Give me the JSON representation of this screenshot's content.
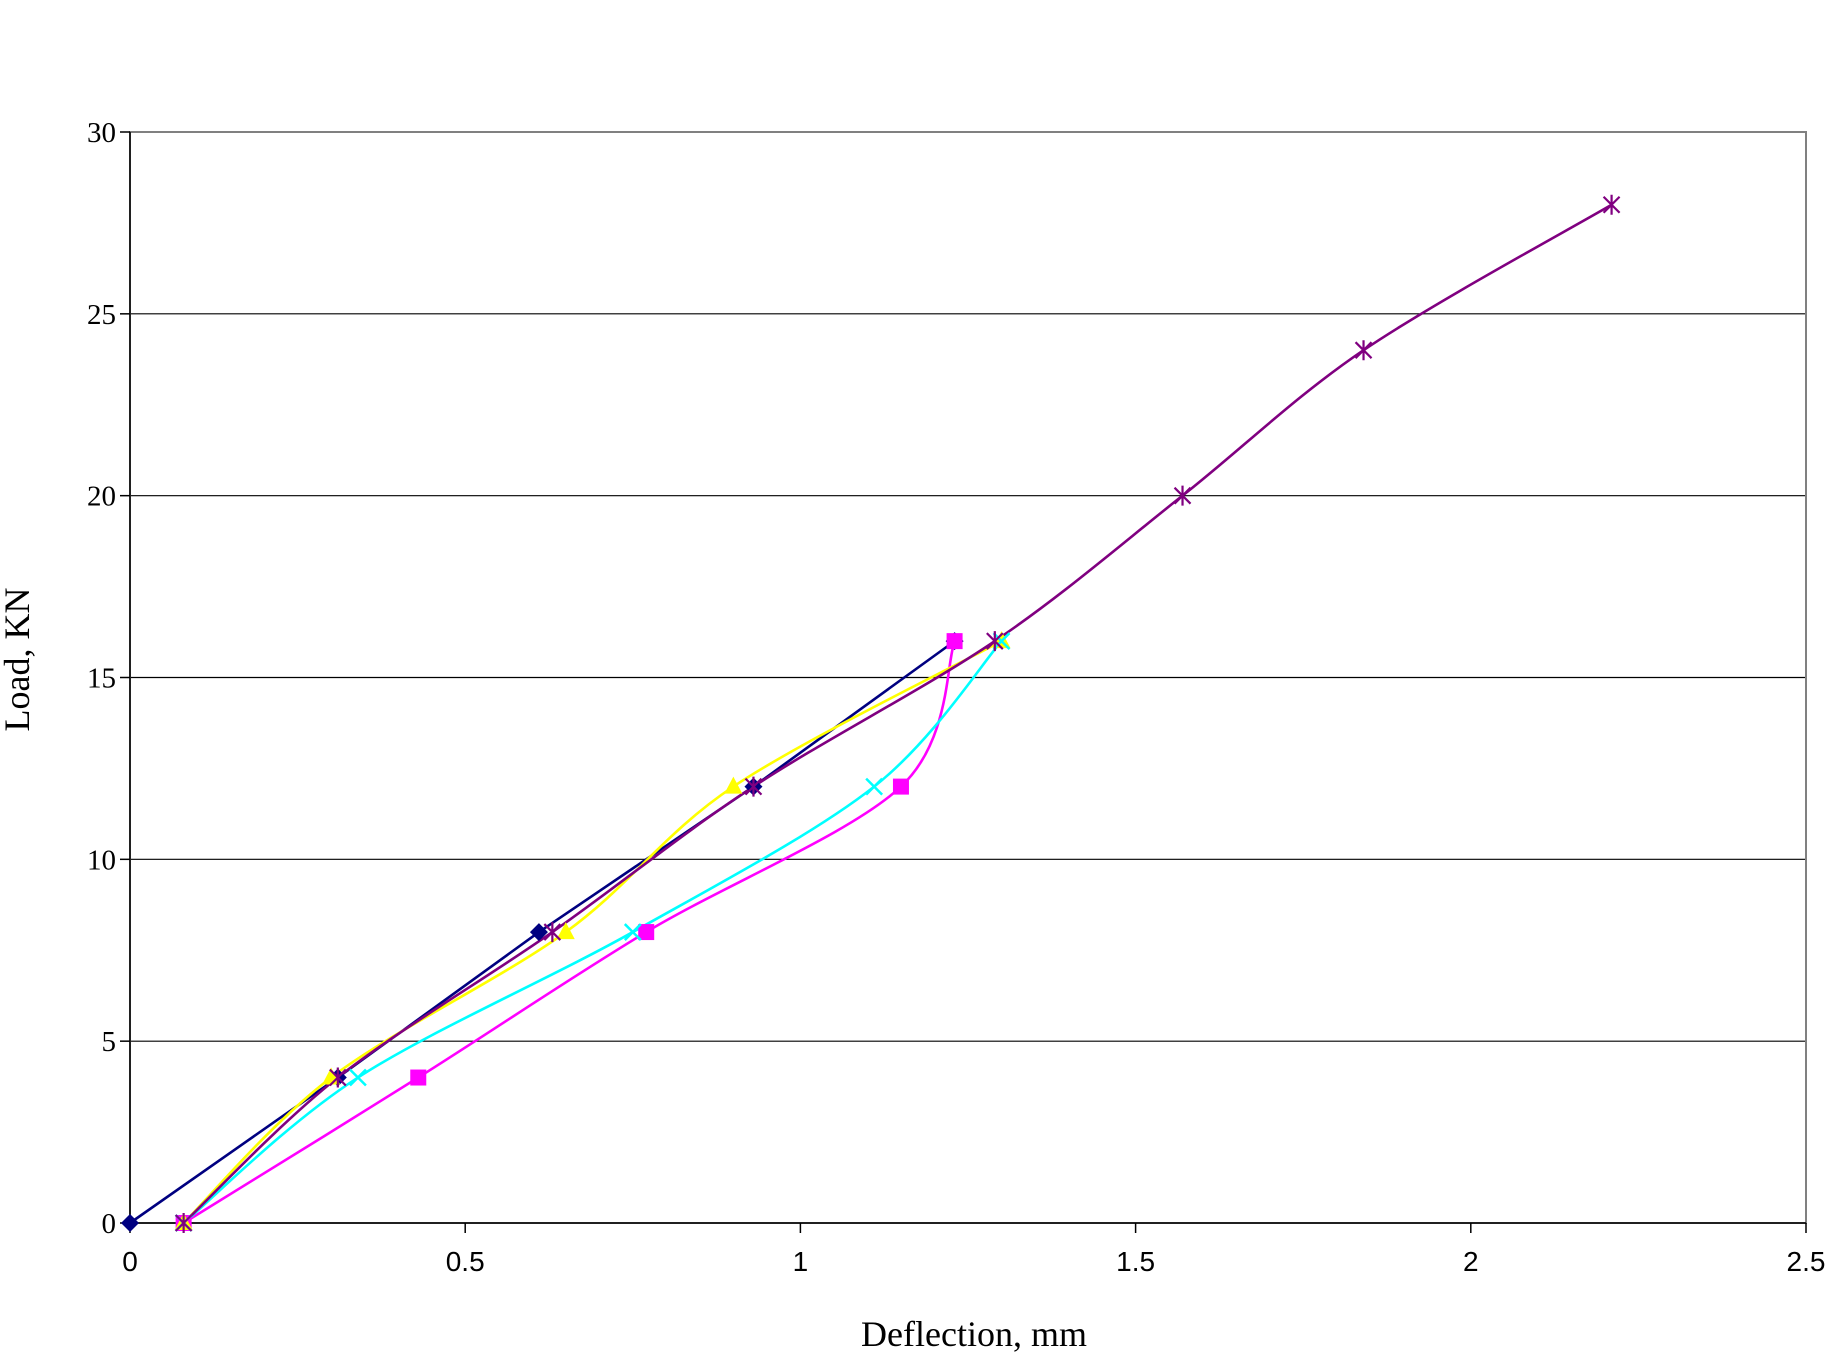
{
  "chart_data": {
    "type": "line",
    "title": "",
    "xlabel": "Deflection, mm",
    "ylabel": "Load, KN",
    "xlim": [
      0,
      2.5
    ],
    "ylim": [
      0,
      30
    ],
    "xticks": [
      0,
      0.5,
      1,
      1.5,
      2,
      2.5
    ],
    "yticks": [
      0,
      5,
      10,
      15,
      20,
      25,
      30
    ],
    "xtick_labels": [
      "0",
      "0.5",
      "1",
      "1.5",
      "2",
      "2.5"
    ],
    "ytick_labels": [
      "0",
      "5",
      "10",
      "15",
      "20",
      "25",
      "30"
    ],
    "grid": "horizontal major gridlines",
    "legend": "none",
    "series": [
      {
        "color": "#000080",
        "marker": "diamond",
        "smooth": false,
        "x": [
          0,
          0.31,
          0.61,
          0.93,
          1.23
        ],
        "y": [
          0,
          4,
          8,
          12,
          16
        ]
      },
      {
        "color": "#FF00FF",
        "marker": "square",
        "smooth": true,
        "x": [
          0.08,
          0.43,
          0.77,
          1.15,
          1.23
        ],
        "y": [
          0,
          4,
          8,
          12,
          16
        ]
      },
      {
        "color": "#FFFF00",
        "marker": "triangle",
        "smooth": true,
        "x": [
          0.08,
          0.3,
          0.65,
          0.9,
          1.3
        ],
        "y": [
          0,
          4,
          8,
          12,
          16
        ]
      },
      {
        "color": "#00FFFF",
        "marker": "x",
        "smooth": true,
        "x": [
          0.08,
          0.34,
          0.75,
          1.11,
          1.3
        ],
        "y": [
          0,
          4,
          8,
          12,
          16
        ]
      },
      {
        "color": "#800080",
        "marker": "star",
        "smooth": true,
        "x": [
          0.08,
          0.31,
          0.63,
          0.93,
          1.29,
          1.57,
          1.84,
          2.21
        ],
        "y": [
          0,
          4,
          8,
          12,
          16,
          20,
          24,
          28
        ]
      }
    ]
  }
}
